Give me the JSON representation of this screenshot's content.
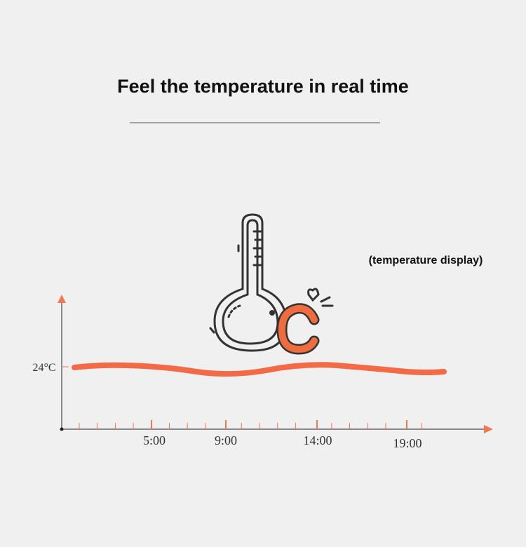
{
  "header": {
    "title": "Feel the temperature in real time"
  },
  "caption": "(temperature display)",
  "axis": {
    "y_label": "24°C",
    "x_labels": [
      "5:00",
      "9:00",
      "14:00",
      "19:00"
    ]
  }
}
